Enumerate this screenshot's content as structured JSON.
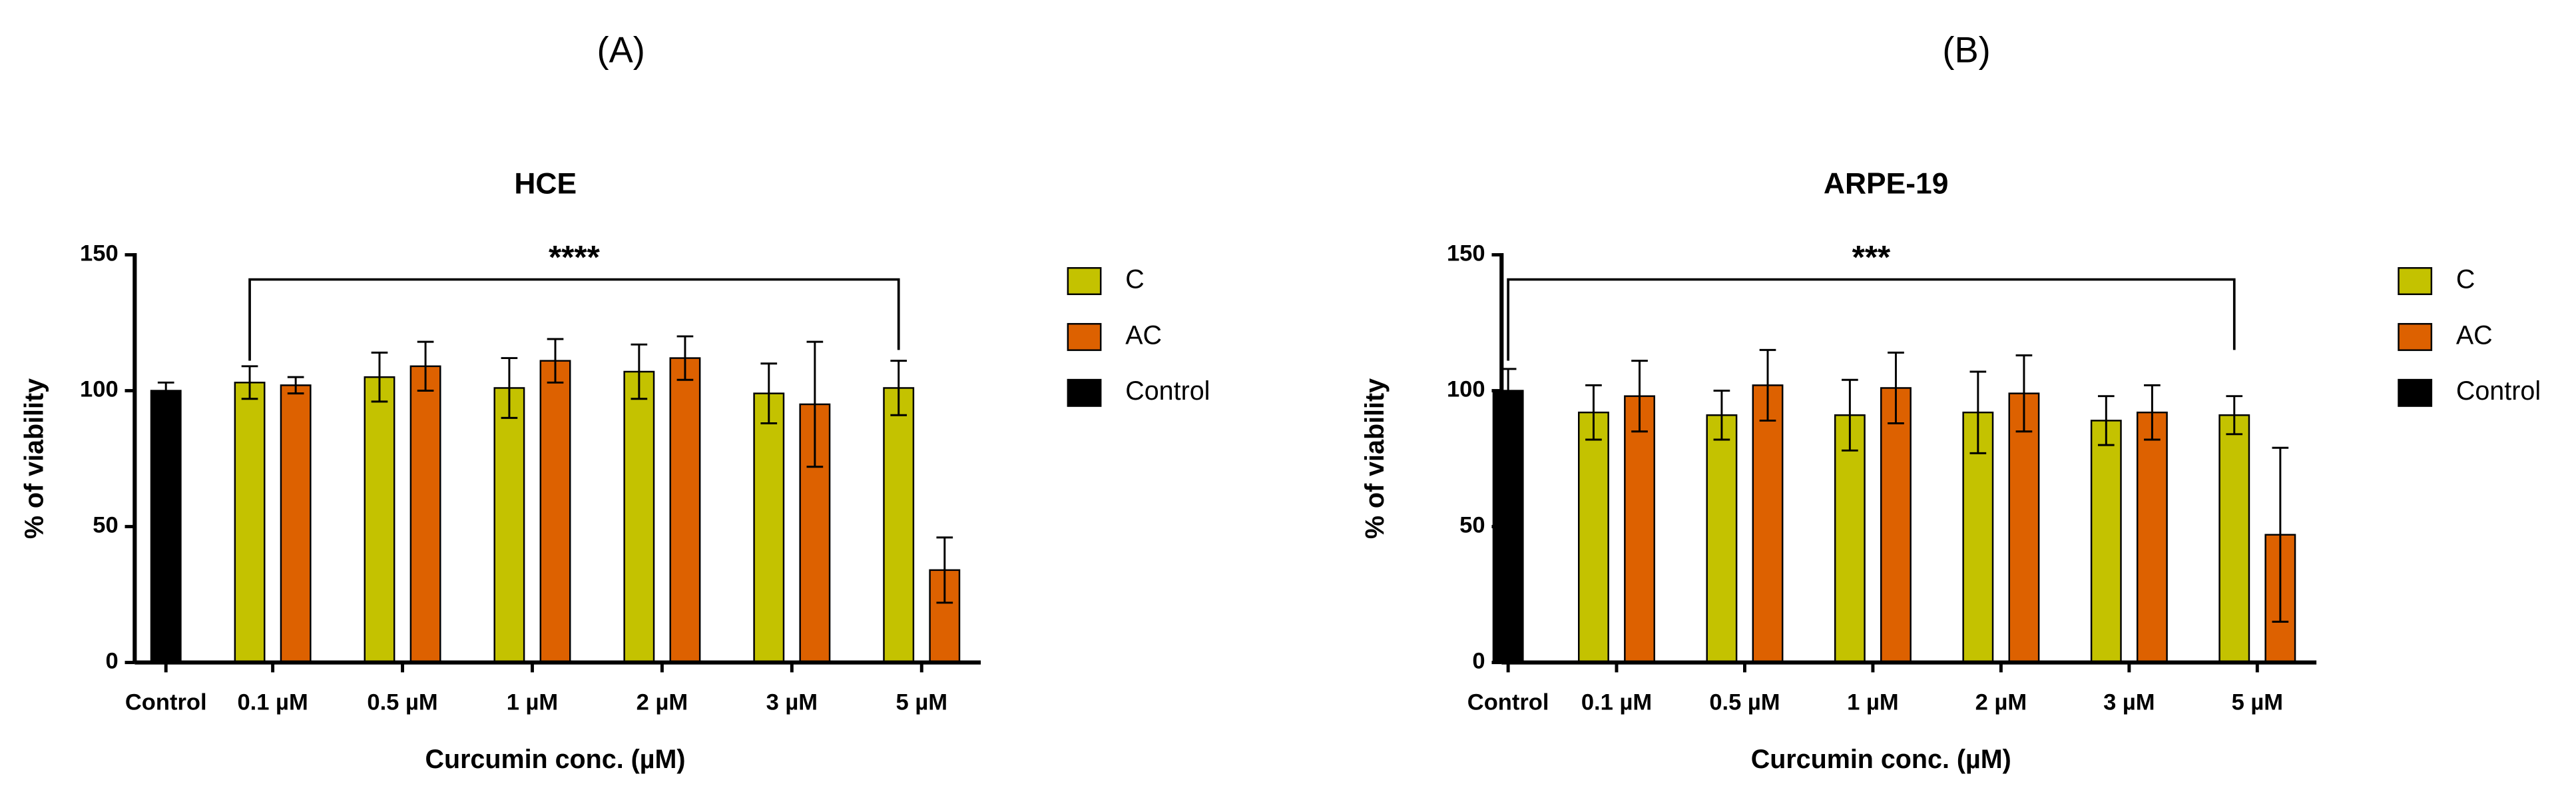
{
  "chart_data": [
    {
      "type": "bar",
      "panel": "(A)",
      "title": "HCE",
      "x_label": "Curcumin conc. (µM)",
      "y_label": "% of viability",
      "categories": [
        "Control",
        "0.1 µM",
        "0.5 µM",
        "1 µM",
        "2 µM",
        "3 µM",
        "5 µM"
      ],
      "series": [
        {
          "name": "C",
          "color": "#c4c200",
          "values": [
            null,
            103,
            105,
            101,
            107,
            99,
            101
          ],
          "errors": [
            null,
            6,
            9,
            11,
            10,
            11,
            10
          ]
        },
        {
          "name": "AC",
          "color": "#dd6100",
          "values": [
            null,
            102,
            109,
            111,
            112,
            95,
            34
          ],
          "errors": [
            null,
            3,
            9,
            8,
            8,
            23,
            12
          ]
        },
        {
          "name": "Control",
          "color": "#000000",
          "values": [
            100,
            null,
            null,
            null,
            null,
            null,
            null
          ],
          "errors": [
            3,
            null,
            null,
            null,
            null,
            null,
            null
          ]
        }
      ],
      "ylim": [
        0,
        150
      ],
      "yticks": [
        0,
        50,
        100,
        150
      ],
      "legend": "right",
      "annotation": {
        "text": "****",
        "from": "0.1 µM",
        "to": "5 µM"
      }
    },
    {
      "type": "bar",
      "panel": "(B)",
      "title": "ARPE-19",
      "x_label": "Curcumin conc. (µM)",
      "y_label": "% of viability",
      "categories": [
        "Control",
        "0.1 µM",
        "0.5 µM",
        "1 µM",
        "2 µM",
        "3 µM",
        "5 µM"
      ],
      "series": [
        {
          "name": "C",
          "color": "#c4c200",
          "values": [
            null,
            92,
            91,
            91,
            92,
            89,
            91
          ],
          "errors": [
            null,
            10,
            9,
            13,
            15,
            9,
            7
          ]
        },
        {
          "name": "AC",
          "color": "#dd6100",
          "values": [
            null,
            98,
            102,
            101,
            99,
            92,
            47
          ],
          "errors": [
            null,
            13,
            13,
            13,
            14,
            10,
            32
          ]
        },
        {
          "name": "Control",
          "color": "#000000",
          "values": [
            100,
            null,
            null,
            null,
            null,
            null,
            null
          ],
          "errors": [
            8,
            null,
            null,
            null,
            null,
            null,
            null
          ]
        }
      ],
      "ylim": [
        0,
        150
      ],
      "yticks": [
        0,
        50,
        100,
        150
      ],
      "legend": "right",
      "annotation": {
        "text": "***",
        "from": "Control",
        "to": "5 µM"
      }
    }
  ]
}
